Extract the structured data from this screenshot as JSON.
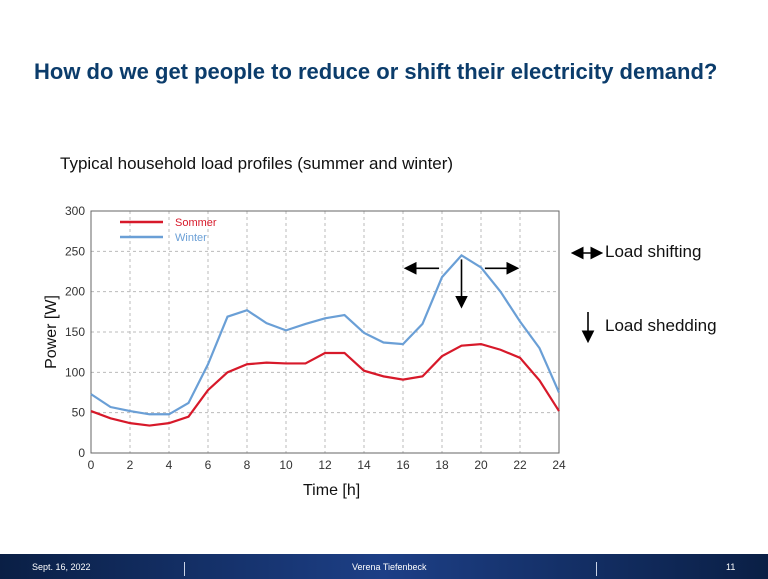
{
  "slide": {
    "title": "How do we get people to reduce or shift their electricity demand?",
    "subtitle": "Typical household load profiles (summer and winter)",
    "annotations": {
      "shifting": "Load shifting",
      "shedding": "Load shedding"
    },
    "footer": {
      "date": "Sept. 16, 2022",
      "author": "Verena Tiefenbeck",
      "page": "11"
    }
  },
  "chart_data": {
    "type": "line",
    "xlabel": "Time [h]",
    "ylabel": "Power [W]",
    "xlim": [
      0,
      24
    ],
    "ylim": [
      0,
      300
    ],
    "xticks": [
      0,
      2,
      4,
      6,
      8,
      10,
      12,
      14,
      16,
      18,
      20,
      22,
      24
    ],
    "yticks": [
      0,
      50,
      100,
      150,
      200,
      250,
      300
    ],
    "grid": true,
    "legend_position": "top-left",
    "x": [
      0,
      1,
      2,
      3,
      4,
      5,
      6,
      7,
      8,
      9,
      10,
      11,
      12,
      13,
      14,
      15,
      16,
      17,
      18,
      19,
      20,
      21,
      22,
      23,
      24
    ],
    "series": [
      {
        "name": "Sommer",
        "color": "#d7192a",
        "values": [
          52,
          43,
          37,
          34,
          37,
          45,
          78,
          100,
          110,
          112,
          111,
          111,
          124,
          124,
          102,
          95,
          91,
          95,
          120,
          133,
          135,
          128,
          118,
          90,
          52
        ]
      },
      {
        "name": "Winter",
        "color": "#6a9fd6",
        "values": [
          73,
          57,
          52,
          48,
          48,
          62,
          110,
          169,
          177,
          161,
          152,
          160,
          167,
          171,
          149,
          137,
          135,
          160,
          218,
          245,
          230,
          200,
          163,
          130,
          75
        ]
      }
    ]
  }
}
